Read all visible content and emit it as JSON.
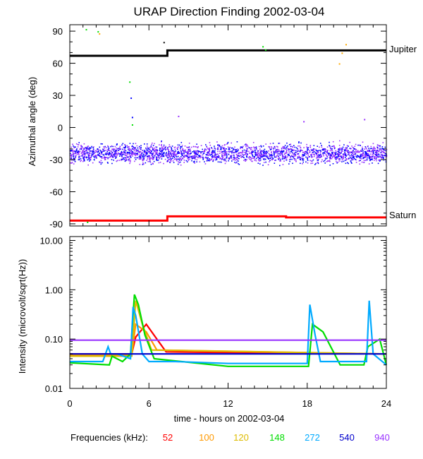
{
  "chart_data": [
    {
      "type": "scatter",
      "title": "URAP Direction Finding  2002-03-04",
      "ylabel": "Azimuthal angle (deg)",
      "xlim": [
        0,
        24
      ],
      "ylim": [
        -92,
        96
      ],
      "yticks": [
        90,
        60,
        30,
        0,
        -30,
        -60,
        -90
      ],
      "yticklabels": [
        "90",
        "60",
        "30",
        "0",
        "-30",
        "-60",
        "-90"
      ],
      "series": [
        {
          "name": "Jupiter",
          "color": "#000000",
          "kind": "step",
          "x": [
            0,
            7.4,
            7.4,
            24
          ],
          "y": [
            67,
            67,
            72,
            72
          ]
        },
        {
          "name": "Saturn",
          "color": "#ff0000",
          "kind": "step",
          "x": [
            0,
            7.4,
            7.4,
            16.4,
            16.4,
            24
          ],
          "y": [
            -87,
            -87,
            -83,
            -83,
            -84,
            -84
          ]
        }
      ],
      "points": {
        "center_deg": -24,
        "spread_deg": 8,
        "colors": [
          "#0000ff",
          "#9933ff"
        ]
      },
      "outliers": [
        {
          "x": 1.2,
          "y": 92,
          "color": "#00dd00"
        },
        {
          "x": 2.1,
          "y": 90,
          "color": "#00dd00"
        },
        {
          "x": 2.2,
          "y": 88,
          "color": "#ffaa00"
        },
        {
          "x": 4.5,
          "y": 43,
          "color": "#00dd00"
        },
        {
          "x": 4.6,
          "y": 28,
          "color": "#0000ff"
        },
        {
          "x": 4.7,
          "y": 10,
          "color": "#0000ff"
        },
        {
          "x": 4.7,
          "y": 3,
          "color": "#00dd00"
        },
        {
          "x": 7.1,
          "y": 80,
          "color": "#000000"
        },
        {
          "x": 8.2,
          "y": 11,
          "color": "#9933ff"
        },
        {
          "x": 14.6,
          "y": 76,
          "color": "#00dd00"
        },
        {
          "x": 14.8,
          "y": 73,
          "color": "#00dd00"
        },
        {
          "x": 20.4,
          "y": 60,
          "color": "#ffaa00"
        },
        {
          "x": 20.6,
          "y": 70,
          "color": "#ffaa00"
        },
        {
          "x": 20.9,
          "y": 78,
          "color": "#ffaa00"
        },
        {
          "x": 22.3,
          "y": 8,
          "color": "#9933ff"
        },
        {
          "x": 17.7,
          "y": 6,
          "color": "#9933ff"
        },
        {
          "x": 1.3,
          "y": -88,
          "color": "#00dd00"
        }
      ]
    },
    {
      "type": "line",
      "ylabel": "Intensity (microvolt/sqrt(Hz))",
      "xlabel": "time - hours on 2002-03-04",
      "xlim": [
        0,
        24
      ],
      "ylim": [
        0.01,
        12
      ],
      "yscale": "log",
      "xticks": [
        0,
        6,
        12,
        18,
        24
      ],
      "xticklabels": [
        "0",
        "6",
        "12",
        "18",
        "24"
      ],
      "yticks": [
        10,
        1,
        0.1,
        0.01
      ],
      "yticklabels": [
        "10.00",
        "1.00",
        "0.10",
        "0.01"
      ],
      "series": [
        {
          "name": "52",
          "color": "#ff0000",
          "x": [
            0,
            4.7,
            5.0,
            5.8,
            6.6,
            7.3,
            24
          ],
          "y": [
            0.05,
            0.05,
            0.11,
            0.2,
            0.1,
            0.055,
            0.05
          ]
        },
        {
          "name": "100",
          "color": "#ff9900",
          "x": [
            0,
            4.7,
            5.0,
            5.8,
            6.6,
            24
          ],
          "y": [
            0.048,
            0.048,
            0.2,
            0.14,
            0.06,
            0.05
          ]
        },
        {
          "name": "120",
          "color": "#ddbb00",
          "x": [
            0,
            4.7,
            5.0,
            5.5,
            6.2,
            24
          ],
          "y": [
            0.045,
            0.045,
            0.6,
            0.2,
            0.06,
            0.05
          ]
        },
        {
          "name": "148",
          "color": "#00dd00",
          "x": [
            0,
            3.0,
            3.2,
            4.0,
            4.6,
            4.9,
            5.2,
            5.7,
            6.4,
            12,
            18.1,
            18.4,
            19.2,
            20.5,
            22.3,
            22.6,
            23.5,
            24
          ],
          "y": [
            0.033,
            0.03,
            0.045,
            0.035,
            0.05,
            0.8,
            0.5,
            0.12,
            0.04,
            0.028,
            0.028,
            0.2,
            0.14,
            0.03,
            0.03,
            0.07,
            0.1,
            0.03
          ]
        },
        {
          "name": "272",
          "color": "#00aaff",
          "x": [
            0,
            2.5,
            2.9,
            3.1,
            3.6,
            4.6,
            4.8,
            5.0,
            5.5,
            6.0,
            8,
            12,
            18.0,
            18.2,
            18.6,
            19.0,
            22.5,
            22.7,
            23.0,
            24
          ],
          "y": [
            0.035,
            0.035,
            0.07,
            0.05,
            0.05,
            0.04,
            0.45,
            0.3,
            0.05,
            0.035,
            0.035,
            0.032,
            0.032,
            0.5,
            0.12,
            0.035,
            0.035,
            0.6,
            0.05,
            0.03
          ]
        },
        {
          "name": "540",
          "color": "#0000cc",
          "x": [
            0,
            24
          ],
          "y": [
            0.05,
            0.05
          ]
        },
        {
          "name": "940",
          "color": "#9933ff",
          "x": [
            0,
            24
          ],
          "y": [
            0.095,
            0.095
          ]
        }
      ]
    }
  ],
  "legend": {
    "label": "Frequencies (kHz):",
    "items": [
      {
        "text": "52",
        "color": "#ff0000"
      },
      {
        "text": "100",
        "color": "#ff9900"
      },
      {
        "text": "120",
        "color": "#ddbb00"
      },
      {
        "text": "148",
        "color": "#00dd00"
      },
      {
        "text": "272",
        "color": "#00aaff"
      },
      {
        "text": "540",
        "color": "#0000cc"
      },
      {
        "text": "940",
        "color": "#9933ff"
      }
    ]
  }
}
